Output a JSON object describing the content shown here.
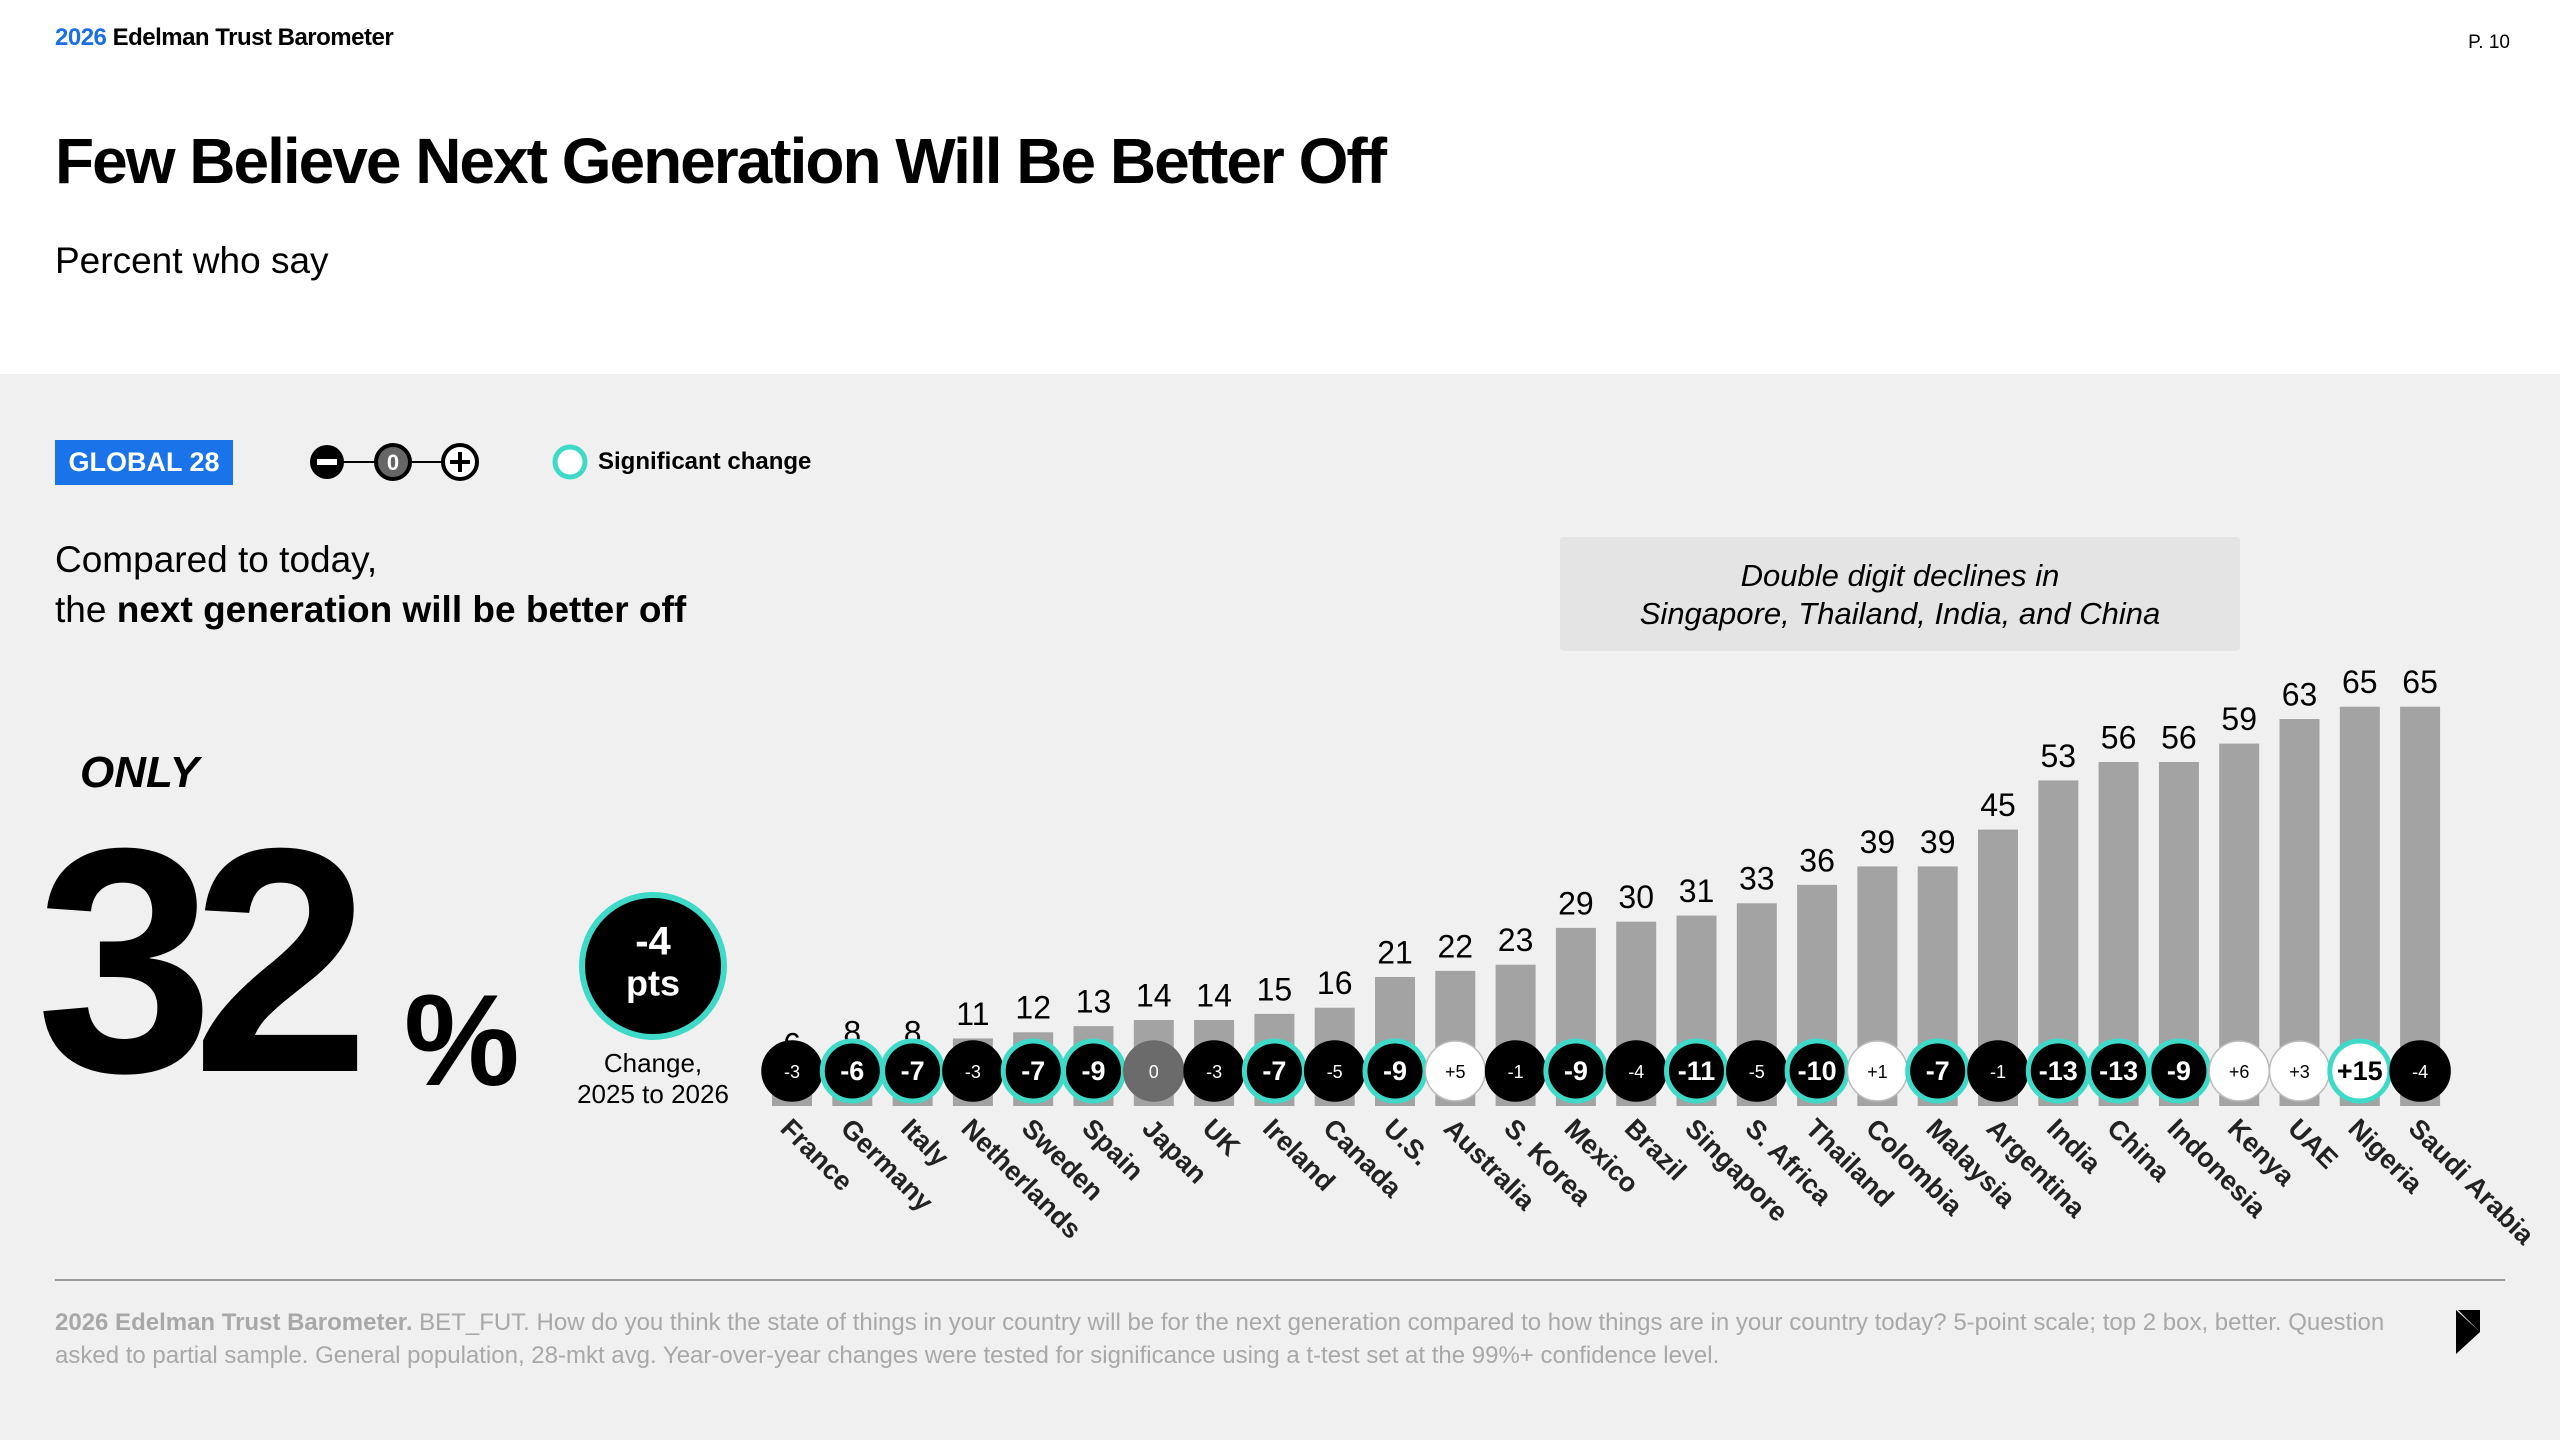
{
  "header": {
    "brand_year": "2026",
    "brand_name": "Edelman Trust Barometer",
    "page": "P. 10"
  },
  "title": "Few Believe Next Generation Will Be Better Off",
  "subtitle": "Percent who say",
  "badge": "GLOBAL 28",
  "legend": {
    "zero_symbol": "0",
    "significant": "Significant change"
  },
  "headline": {
    "line1": "Compared to today,",
    "line2_start": "the ",
    "line2_bold": "next generation will be better off"
  },
  "callout": {
    "line1": "Double digit declines in",
    "line2": "Singapore, Thailand, India, and China"
  },
  "global": {
    "only": "ONLY",
    "value": 32,
    "unit": "%",
    "change": -4,
    "change_unit": "pts",
    "significant": true,
    "caption1": "Change,",
    "caption2": "2025 to 2026"
  },
  "chart_data": {
    "type": "bar",
    "categories": [
      "France",
      "Germany",
      "Italy",
      "Netherlands",
      "Sweden",
      "Spain",
      "Japan",
      "UK",
      "Ireland",
      "Canada",
      "U.S.",
      "Australia",
      "S. Korea",
      "Mexico",
      "Brazil",
      "Singapore",
      "S. Africa",
      "Thailand",
      "Colombia",
      "Malaysia",
      "Argentina",
      "India",
      "China",
      "Indonesia",
      "Kenya",
      "UAE",
      "Nigeria",
      "Saudi Arabia"
    ],
    "values": [
      6,
      8,
      8,
      11,
      12,
      13,
      14,
      14,
      15,
      16,
      21,
      22,
      23,
      29,
      30,
      31,
      33,
      36,
      39,
      39,
      45,
      53,
      56,
      56,
      59,
      63,
      65,
      65
    ],
    "color": "#a3a3a3",
    "ylim": [
      0,
      70
    ],
    "changes": {
      "values": [
        -3,
        -6,
        -7,
        -3,
        -7,
        -9,
        0,
        -3,
        -7,
        -5,
        -9,
        5,
        -1,
        -9,
        -4,
        -11,
        -5,
        -10,
        1,
        -7,
        -1,
        -13,
        -13,
        -9,
        6,
        3,
        15,
        -4
      ],
      "value_labels": [
        "-3",
        "-6",
        "-7",
        "-3",
        "-7",
        "-9",
        "0",
        "-3",
        "-7",
        "-5",
        "-9",
        "+5",
        "-1",
        "-9",
        "-4",
        "-11",
        "-5",
        "-10",
        "+1",
        "-7",
        "-1",
        "-13",
        "-13",
        "-9",
        "+6",
        "+3",
        "+15",
        "-4"
      ],
      "significant": [
        false,
        true,
        true,
        false,
        true,
        true,
        false,
        false,
        true,
        false,
        true,
        false,
        false,
        true,
        false,
        true,
        false,
        true,
        false,
        true,
        false,
        true,
        true,
        true,
        false,
        false,
        true,
        false
      ]
    },
    "significant_color": "#3fd9c8"
  },
  "footnote": {
    "bold": "2026 Edelman Trust Barometer.",
    "text": " BET_FUT. How do you think the state of things in your country will be for the next generation compared to how things are in your country today? 5-point scale; top 2 box, better. Question asked to partial sample. General population, 28-mkt avg. Year-over-year changes were tested for significance using a t-test set at the 99%+ confidence level."
  }
}
